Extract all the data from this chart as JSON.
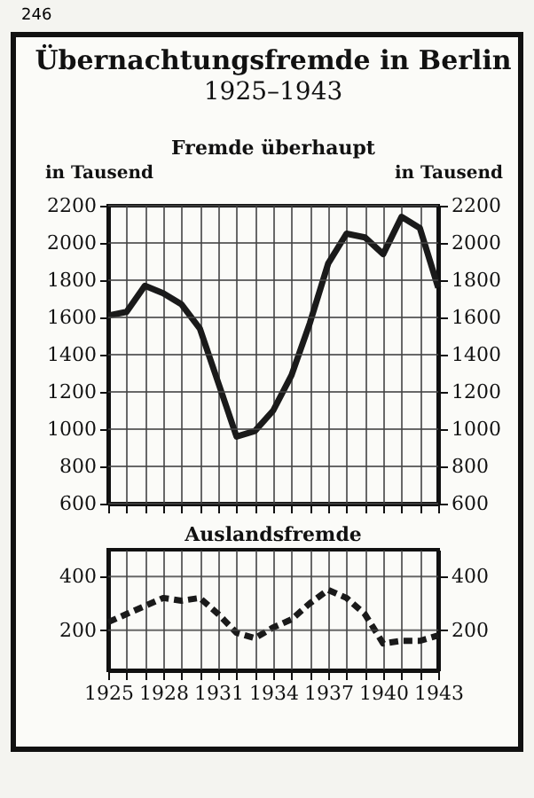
{
  "chart_data": [
    {
      "type": "line",
      "title": "Übernachtungsfremde in Berlin",
      "subtitle": "1925–1943",
      "ylabel": "in Tausend",
      "y2label": "in Tausend",
      "annotations": [
        "246"
      ],
      "x": [
        1925,
        1926,
        1927,
        1928,
        1929,
        1930,
        1931,
        1932,
        1933,
        1934,
        1935,
        1936,
        1937,
        1938,
        1939,
        1940,
        1941,
        1942,
        1943
      ],
      "series": [
        {
          "name": "Fremde überhaupt",
          "color": "#1a1a1a",
          "values": [
            1610,
            1630,
            1770,
            1730,
            1670,
            1540,
            1250,
            960,
            990,
            1100,
            1290,
            1570,
            1890,
            2050,
            2030,
            1940,
            2140,
            2080,
            1760
          ]
        }
      ],
      "xlim": [
        1925,
        1943
      ],
      "xticks": [
        {
          "value": 1925,
          "label": null
        },
        {
          "value": 1926,
          "label": null
        },
        {
          "value": 1927,
          "label": null
        },
        {
          "value": 1928,
          "label": null
        },
        {
          "value": 1929,
          "label": null
        },
        {
          "value": 1930,
          "label": null
        },
        {
          "value": 1931,
          "label": null
        },
        {
          "value": 1932,
          "label": null
        },
        {
          "value": 1933,
          "label": null
        },
        {
          "value": 1934,
          "label": null
        },
        {
          "value": 1935,
          "label": null
        },
        {
          "value": 1936,
          "label": null
        },
        {
          "value": 1937,
          "label": null
        },
        {
          "value": 1938,
          "label": null
        },
        {
          "value": 1939,
          "label": null
        },
        {
          "value": 1940,
          "label": null
        },
        {
          "value": 1941,
          "label": null
        },
        {
          "value": 1942,
          "label": null
        },
        {
          "value": 1943,
          "label": null
        }
      ],
      "ylim": [
        600,
        2200
      ],
      "yticks": [
        600,
        800,
        1000,
        1200,
        1400,
        1600,
        1800,
        2000,
        2200
      ],
      "y2lim": [
        600,
        2200
      ],
      "y2ticks": [
        600,
        800,
        1000,
        1200,
        1400,
        1600,
        1800,
        2000,
        2200
      ],
      "tick_labels": "y",
      "grid": true,
      "marker": "none",
      "line_style": "solid"
    },
    {
      "type": "line",
      "x": [
        1925,
        1926,
        1927,
        1928,
        1929,
        1930,
        1931,
        1932,
        1933,
        1934,
        1935,
        1936,
        1937,
        1938,
        1939,
        1940,
        1941,
        1942,
        1943
      ],
      "series": [
        {
          "name": "Auslandsfremde",
          "color": "#1a1a1a",
          "values": [
            230,
            260,
            290,
            320,
            310,
            320,
            260,
            190,
            170,
            210,
            240,
            300,
            350,
            320,
            260,
            150,
            160,
            160,
            180
          ]
        }
      ],
      "xlim": [
        1925,
        1943
      ],
      "xticks": [
        1925,
        {
          "value": 1926,
          "label": null
        },
        {
          "value": 1927,
          "label": null
        },
        1928,
        {
          "value": 1929,
          "label": null
        },
        {
          "value": 1930,
          "label": null
        },
        1931,
        {
          "value": 1932,
          "label": null
        },
        {
          "value": 1933,
          "label": null
        },
        1934,
        {
          "value": 1935,
          "label": null
        },
        {
          "value": 1936,
          "label": null
        },
        1937,
        {
          "value": 1938,
          "label": null
        },
        {
          "value": 1939,
          "label": null
        },
        1940,
        {
          "value": 1941,
          "label": null
        },
        {
          "value": 1942,
          "label": null
        },
        1943
      ],
      "ylim": [
        50,
        500
      ],
      "yticks": [
        200,
        400
      ],
      "y2lim": [
        50,
        500
      ],
      "y2ticks": [
        200,
        400
      ],
      "grid": true,
      "marker": "none",
      "line_style": "dashed"
    }
  ]
}
